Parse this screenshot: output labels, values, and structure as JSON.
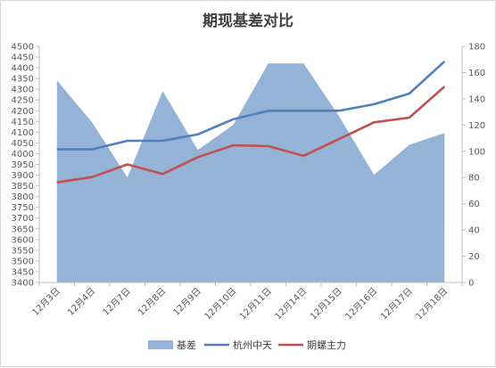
{
  "chart_data": {
    "type": "line",
    "title": "期现基差对比",
    "categories": [
      "12月3日",
      "12月4日",
      "12月7日",
      "12月8日",
      "12月9日",
      "12月10日",
      "12月11日",
      "12月14日",
      "12月15日",
      "12月16日",
      "12月17日",
      "12月18日"
    ],
    "series": [
      {
        "name": "基差",
        "chart_type": "area",
        "axis": "right",
        "color": "#95b3d7",
        "values": [
          154,
          122,
          80,
          146,
          101,
          120,
          167,
          167,
          127,
          82,
          105,
          114
        ]
      },
      {
        "name": "杭州中天",
        "chart_type": "line",
        "axis": "left",
        "color": "#4f81bd",
        "values": [
          4020,
          4020,
          4060,
          4060,
          4090,
          4160,
          4200,
          4200,
          4200,
          4230,
          4280,
          4430
        ]
      },
      {
        "name": "期螺主力",
        "chart_type": "line",
        "axis": "left",
        "color": "#c0504d",
        "values": [
          3866,
          3891,
          3950,
          3905,
          3984,
          4039,
          4035,
          3990,
          4068,
          4146,
          4168,
          4313
        ]
      }
    ],
    "y_left": {
      "min": 3400,
      "max": 4500,
      "step": 50
    },
    "y_right": {
      "min": 0,
      "max": 180,
      "step": 20
    },
    "grid": false,
    "legend_position": "bottom"
  }
}
